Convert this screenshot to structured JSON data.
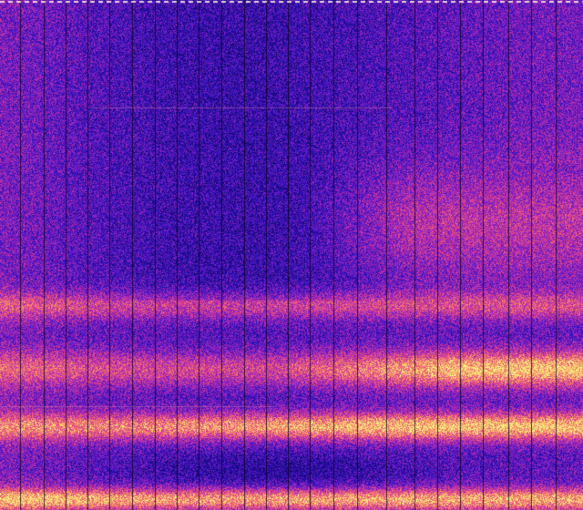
{
  "image": {
    "kind": "spectrogram",
    "palette": [
      "#14086e",
      "#2a10b8",
      "#6a1cc8",
      "#b02ab0",
      "#e84a88",
      "#f88a60",
      "#f8f080"
    ]
  }
}
